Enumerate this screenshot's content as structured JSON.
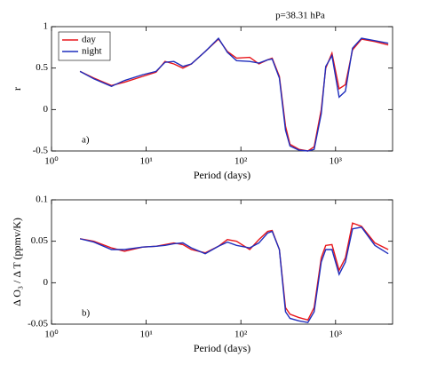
{
  "chart_data": [
    {
      "type": "line",
      "log_x": true,
      "legend": "upper left",
      "annotation": "p=38.31 hPa",
      "panel_label": "a)",
      "xlabel": "Period (days)",
      "ylabel": "r",
      "xlim": [
        1,
        4000
      ],
      "ylim": [
        -0.5,
        1
      ],
      "xticks": [
        {
          "value": 1,
          "label": "10⁰"
        },
        {
          "value": 10,
          "label": "10¹"
        },
        {
          "value": 100,
          "label": "10²"
        },
        {
          "value": 1000,
          "label": "10³"
        }
      ],
      "yticks": [
        -0.5,
        0,
        0.5,
        1
      ],
      "x": [
        2,
        2.8,
        4.3,
        5.9,
        9.2,
        12.7,
        15.8,
        19.6,
        24.4,
        30,
        42,
        58,
        72,
        90,
        124,
        155,
        192,
        214,
        255,
        296,
        330,
        410,
        510,
        594,
        706,
        787,
        916,
        1090,
        1270,
        1510,
        1880,
        2600,
        3600
      ],
      "series": [
        {
          "name": "day",
          "color": "#e8161b",
          "values": [
            0.46,
            0.38,
            0.29,
            0.33,
            0.4,
            0.45,
            0.58,
            0.55,
            0.5,
            0.55,
            0.7,
            0.85,
            0.7,
            0.62,
            0.63,
            0.55,
            0.6,
            0.62,
            0.4,
            -0.2,
            -0.42,
            -0.48,
            -0.5,
            -0.45,
            0.0,
            0.5,
            0.68,
            0.25,
            0.3,
            0.72,
            0.85,
            0.82,
            0.78
          ]
        },
        {
          "name": "night",
          "color": "#1f2ebd",
          "values": [
            0.46,
            0.37,
            0.28,
            0.35,
            0.42,
            0.46,
            0.57,
            0.58,
            0.52,
            0.55,
            0.7,
            0.86,
            0.69,
            0.59,
            0.58,
            0.56,
            0.6,
            0.61,
            0.38,
            -0.25,
            -0.44,
            -0.49,
            -0.5,
            -0.48,
            -0.05,
            0.52,
            0.65,
            0.15,
            0.22,
            0.74,
            0.86,
            0.83,
            0.8
          ]
        }
      ]
    },
    {
      "type": "line",
      "log_x": true,
      "panel_label": "b)",
      "xlabel": "Period (days)",
      "ylabel": "Δ O₃ / Δ T (ppmv/K)",
      "xlim": [
        1,
        4000
      ],
      "ylim": [
        -0.05,
        0.1
      ],
      "xticks": [
        {
          "value": 1,
          "label": "10⁰"
        },
        {
          "value": 10,
          "label": "10¹"
        },
        {
          "value": 100,
          "label": "10²"
        },
        {
          "value": 1000,
          "label": "10³"
        }
      ],
      "yticks": [
        -0.05,
        0,
        0.05,
        0.1
      ],
      "x": [
        2,
        2.8,
        4.3,
        5.9,
        9.2,
        12.7,
        15.8,
        19.6,
        24.4,
        30,
        42,
        58,
        72,
        90,
        124,
        155,
        192,
        214,
        255,
        296,
        330,
        410,
        510,
        594,
        706,
        787,
        916,
        1090,
        1270,
        1510,
        1880,
        2600,
        3600
      ],
      "series": [
        {
          "name": "day",
          "color": "#e8161b",
          "values": [
            0.053,
            0.05,
            0.042,
            0.038,
            0.043,
            0.044,
            0.046,
            0.048,
            0.046,
            0.04,
            0.036,
            0.044,
            0.052,
            0.05,
            0.04,
            0.052,
            0.062,
            0.063,
            0.04,
            -0.03,
            -0.038,
            -0.042,
            -0.045,
            -0.03,
            0.03,
            0.045,
            0.046,
            0.015,
            0.03,
            0.072,
            0.068,
            0.048,
            0.04
          ]
        },
        {
          "name": "night",
          "color": "#1f2ebd",
          "values": [
            0.053,
            0.049,
            0.04,
            0.04,
            0.043,
            0.044,
            0.045,
            0.047,
            0.048,
            0.042,
            0.035,
            0.044,
            0.049,
            0.045,
            0.042,
            0.048,
            0.06,
            0.062,
            0.04,
            -0.035,
            -0.043,
            -0.046,
            -0.048,
            -0.035,
            0.025,
            0.04,
            0.04,
            0.01,
            0.025,
            0.065,
            0.067,
            0.045,
            0.035
          ]
        }
      ]
    }
  ]
}
